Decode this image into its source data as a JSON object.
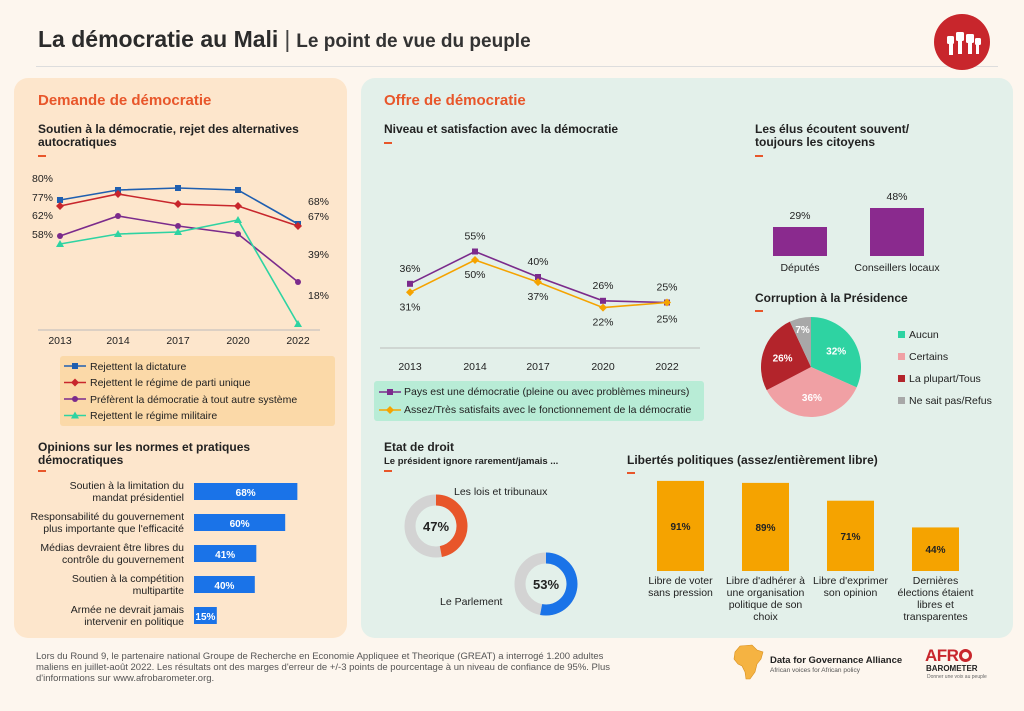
{
  "header": {
    "title": "La démocratie au Mali",
    "separator": "|",
    "subtitle": "Le point de vue du peuple"
  },
  "left_panel": {
    "section_title": "Demande de démocratie",
    "support_title": "Soutien à la démocratie, rejet des alternatives autocratiques",
    "norms_title": "Opinions sur les normes et pratiques démocratiques"
  },
  "right_panel": {
    "section_title": "Offre de démocratie",
    "level_title": "Niveau et satisfaction avec la démocratie",
    "elected_title": "Les élus écoutent souvent/ toujours les citoyens",
    "corruption_title": "Corruption à la Présidence",
    "rule_title": "Etat de droit",
    "rule_subtitle": "Le président ignore rarement/jamais ...",
    "liberties_title": "Libertés politiques (assez/entièrement libre)"
  },
  "chart_data": [
    {
      "type": "line",
      "title": "Soutien à la démocratie, rejet des alternatives autocratiques",
      "x": [
        "2013",
        "2014",
        "2017",
        "2020",
        "2022"
      ],
      "ylim": [
        0,
        100
      ],
      "series": [
        {
          "name": "Rejettent la dictature",
          "values": [
            80,
            85,
            86,
            85,
            68
          ],
          "color": "#1f5fb0"
        },
        {
          "name": "Rejettent le régime de parti unique",
          "values": [
            77,
            83,
            78,
            77,
            67
          ],
          "color": "#c8262c"
        },
        {
          "name": "Préfèrent la démocratie à tout autre système",
          "values": [
            62,
            72,
            67,
            63,
            39
          ],
          "color": "#7b2b8c"
        },
        {
          "name": "Rejettent le régime militaire",
          "values": [
            58,
            63,
            64,
            70,
            18
          ],
          "color": "#2ed3a2"
        }
      ],
      "labels": {
        "start": [
          "80%",
          "77%",
          "62%",
          "58%"
        ],
        "end": [
          "68%",
          "67%",
          "39%",
          "18%"
        ]
      },
      "legend": "bottom"
    },
    {
      "type": "bar",
      "title": "Opinions sur les normes et pratiques démocratiques",
      "orientation": "horizontal",
      "categories": [
        "Soutien à la limitation du mandat présidentiel",
        "Responsabilité du gouvernement plus importante que l'efficacité",
        "Médias devraient être libres du contrôle du gouvernement",
        "Soutien à la compétition multipartite",
        "Armée ne devrait jamais intervenir en politique"
      ],
      "values": [
        68,
        60,
        41,
        40,
        15
      ],
      "value_labels": [
        "68%",
        "60%",
        "41%",
        "40%",
        "15%"
      ],
      "color": "#1a73e8"
    },
    {
      "type": "line",
      "title": "Niveau et satisfaction avec la démocratie",
      "x": [
        "2013",
        "2014",
        "2017",
        "2020",
        "2022"
      ],
      "ylim": [
        0,
        100
      ],
      "series": [
        {
          "name": "Pays est une démocratie (pleine ou avec problèmes mineurs)",
          "values": [
            36,
            55,
            40,
            26,
            25
          ],
          "value_labels": [
            "36%",
            "55%",
            "40%",
            "26%",
            "25%"
          ],
          "color": "#7b2b8c"
        },
        {
          "name": "Assez/Très satisfaits avec le fonctionnement de la démocratie",
          "values": [
            31,
            50,
            37,
            22,
            25
          ],
          "value_labels": [
            "31%",
            "50%",
            "37%",
            "22%",
            "25%"
          ],
          "color": "#f5a300"
        }
      ],
      "legend": "bottom"
    },
    {
      "type": "bar",
      "title": "Les élus écoutent souvent/ toujours les citoyens",
      "categories": [
        "Députés",
        "Conseillers locaux"
      ],
      "values": [
        29,
        48
      ],
      "value_labels": [
        "29%",
        "48%"
      ],
      "color": "#8a2a8e"
    },
    {
      "type": "pie",
      "title": "Corruption à la Présidence",
      "categories": [
        "Aucun",
        "Certains",
        "La plupart/Tous",
        "Ne sait pas/Refus"
      ],
      "values": [
        32,
        36,
        26,
        7
      ],
      "value_labels": [
        "32%",
        "36%",
        "26%",
        "7%"
      ],
      "colors": [
        "#2ed3a2",
        "#f0a0a4",
        "#b3242b",
        "#a8a8a8"
      ],
      "legend": "right"
    },
    {
      "type": "pie",
      "title": "Etat de droit",
      "subtitle": "Le président ignore rarement/jamais ...",
      "categories": [
        "Les lois et tribunaux",
        "Le Parlement"
      ],
      "values": [
        47,
        53
      ],
      "value_labels": [
        "47%",
        "53%"
      ],
      "colors": [
        "#e8562a",
        "#1a73e8"
      ]
    },
    {
      "type": "bar",
      "title": "Libertés politiques (assez/entièrement libre)",
      "categories": [
        "Libre de voter sans pression",
        "Libre d'adhérer à une organisation politique de son choix",
        "Libre d'exprimer son opinion",
        "Dernières élections étaient libres et transparentes"
      ],
      "values": [
        91,
        89,
        71,
        44
      ],
      "value_labels": [
        "91%",
        "89%",
        "71%",
        "44%"
      ],
      "color": "#f5a300"
    }
  ],
  "footer": {
    "text": "Lors du Round 9, le partenaire national Groupe de Recherche en Economie Appliquee et Theorique (GREAT) a interrogé 1.200 adultes maliens en juillet-août 2022. Les résultats ont des marges d'erreur de +/-3 points de pourcentage à un niveau de confiance de 95%. Plus d'informations sur www.afrobarometer.org.",
    "brand1": "Data for Governance Alliance",
    "brand1_sub": "African voices for African policy",
    "brand2_a": "AFR",
    "brand2_b": "BAROMETER",
    "brand2_tag": "Donner une voix au peuple"
  }
}
